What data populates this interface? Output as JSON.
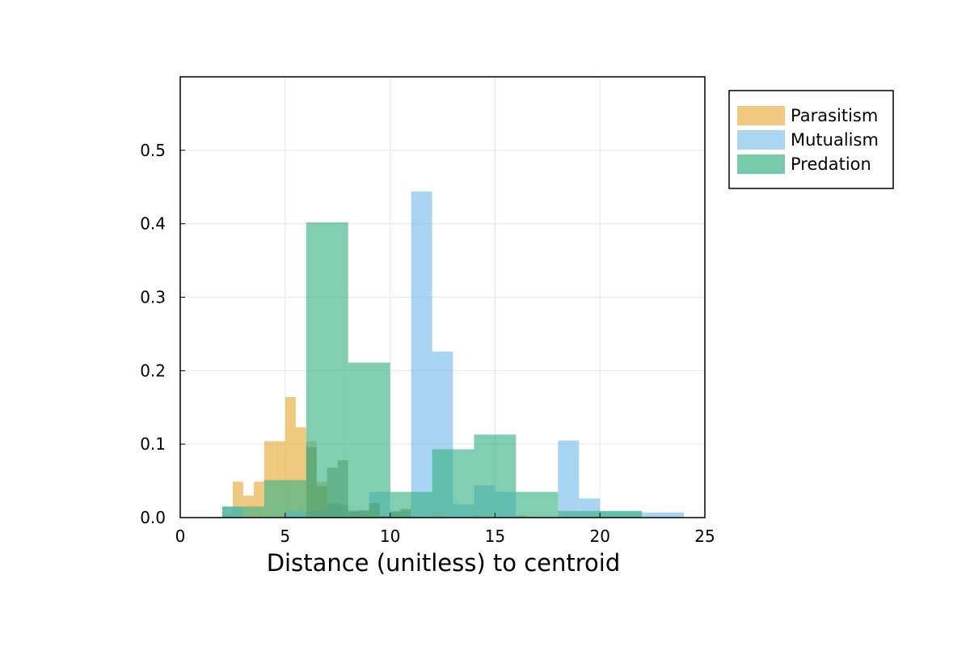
{
  "chart_data": {
    "type": "bar",
    "subtype": "overlaid-histogram",
    "xlabel": "Distance (unitless) to centroid",
    "ylabel": "",
    "xlim": [
      0,
      25
    ],
    "ylim": [
      0,
      0.6
    ],
    "x_ticks": [
      "0",
      "5",
      "10",
      "15",
      "20",
      "25"
    ],
    "y_ticks": [
      "0.0",
      "0.1",
      "0.2",
      "0.3",
      "0.4",
      "0.5"
    ],
    "grid": true,
    "legend_position": "outside-top-right",
    "series": [
      {
        "name": "Parasitism",
        "color": "#e9b44c",
        "opacity": 0.72,
        "bins": [
          {
            "x0": 1.5,
            "x1": 2.0,
            "y": 0.001
          },
          {
            "x0": 2.0,
            "x1": 2.5,
            "y": 0.005
          },
          {
            "x0": 2.5,
            "x1": 3.0,
            "y": 0.049
          },
          {
            "x0": 3.0,
            "x1": 3.5,
            "y": 0.03
          },
          {
            "x0": 3.5,
            "x1": 4.0,
            "y": 0.049
          },
          {
            "x0": 4.0,
            "x1": 4.5,
            "y": 0.104
          },
          {
            "x0": 4.5,
            "x1": 5.0,
            "y": 0.104
          },
          {
            "x0": 5.0,
            "x1": 5.5,
            "y": 0.164
          },
          {
            "x0": 5.5,
            "x1": 6.0,
            "y": 0.123
          },
          {
            "x0": 6.0,
            "x1": 6.5,
            "y": 0.104
          },
          {
            "x0": 6.5,
            "x1": 7.0,
            "y": 0.049
          },
          {
            "x0": 7.0,
            "x1": 7.5,
            "y": 0.02
          },
          {
            "x0": 7.5,
            "x1": 8.0,
            "y": 0.015
          },
          {
            "x0": 8.0,
            "x1": 8.5,
            "y": 0.01
          },
          {
            "x0": 8.5,
            "x1": 9.0,
            "y": 0.005
          },
          {
            "x0": 9.0,
            "x1": 9.5,
            "y": 0.003
          },
          {
            "x0": 9.5,
            "x1": 10.0,
            "y": 0.003
          },
          {
            "x0": 10.0,
            "x1": 10.5,
            "y": 0.005
          },
          {
            "x0": 10.5,
            "x1": 11.0,
            "y": 0.002
          },
          {
            "x0": 11.0,
            "x1": 11.5,
            "y": 0.002
          },
          {
            "x0": 12.0,
            "x1": 12.5,
            "y": 0.008
          },
          {
            "x0": 14.0,
            "x1": 14.5,
            "y": 0.004
          },
          {
            "x0": 16.0,
            "x1": 16.5,
            "y": 0.003
          }
        ]
      },
      {
        "name": "Mutualism",
        "color": "#87c5ec",
        "opacity": 0.72,
        "bins": [
          {
            "x0": 2.0,
            "x1": 3.0,
            "y": 0.015
          },
          {
            "x0": 5.0,
            "x1": 6.0,
            "y": 0.009
          },
          {
            "x0": 6.0,
            "x1": 7.0,
            "y": 0.009
          },
          {
            "x0": 7.0,
            "x1": 8.0,
            "y": 0.018
          },
          {
            "x0": 8.0,
            "x1": 9.0,
            "y": 0.009
          },
          {
            "x0": 9.0,
            "x1": 10.0,
            "y": 0.035
          },
          {
            "x0": 10.0,
            "x1": 11.0,
            "y": 0.009
          },
          {
            "x0": 11.0,
            "x1": 12.0,
            "y": 0.444
          },
          {
            "x0": 12.0,
            "x1": 13.0,
            "y": 0.226
          },
          {
            "x0": 13.0,
            "x1": 14.0,
            "y": 0.018
          },
          {
            "x0": 14.0,
            "x1": 15.0,
            "y": 0.044
          },
          {
            "x0": 15.0,
            "x1": 16.0,
            "y": 0.035
          },
          {
            "x0": 16.0,
            "x1": 17.0,
            "y": 0.001
          },
          {
            "x0": 18.0,
            "x1": 19.0,
            "y": 0.105
          },
          {
            "x0": 19.0,
            "x1": 20.0,
            "y": 0.026
          },
          {
            "x0": 20.0,
            "x1": 22.0,
            "y": 0.009
          },
          {
            "x0": 22.0,
            "x1": 24.0,
            "y": 0.007
          }
        ]
      },
      {
        "name": "Predation",
        "color": "#3eb489",
        "opacity": 0.65,
        "bins": [
          {
            "x0": 2.0,
            "x1": 4.0,
            "y": 0.015
          },
          {
            "x0": 4.0,
            "x1": 6.0,
            "y": 0.051
          },
          {
            "x0": 6.0,
            "x1": 8.0,
            "y": 0.402
          },
          {
            "x0": 8.0,
            "x1": 10.0,
            "y": 0.211
          },
          {
            "x0": 10.0,
            "x1": 12.0,
            "y": 0.035
          },
          {
            "x0": 12.0,
            "x1": 14.0,
            "y": 0.093
          },
          {
            "x0": 14.0,
            "x1": 16.0,
            "y": 0.113
          },
          {
            "x0": 16.0,
            "x1": 18.0,
            "y": 0.035
          },
          {
            "x0": 18.0,
            "x1": 20.0,
            "y": 0.009
          },
          {
            "x0": 20.0,
            "x1": 22.0,
            "y": 0.009
          }
        ]
      },
      {
        "name": "",
        "color": "#4f9c6a",
        "opacity": 0.55,
        "bins": [
          {
            "x0": 6.0,
            "x1": 6.5,
            "y": 0.096
          },
          {
            "x0": 6.5,
            "x1": 7.0,
            "y": 0.043
          },
          {
            "x0": 7.0,
            "x1": 7.5,
            "y": 0.068
          },
          {
            "x0": 7.5,
            "x1": 8.0,
            "y": 0.078
          },
          {
            "x0": 8.0,
            "x1": 8.5,
            "y": 0.008
          },
          {
            "x0": 8.5,
            "x1": 9.0,
            "y": 0.01
          },
          {
            "x0": 9.0,
            "x1": 9.5,
            "y": 0.02
          },
          {
            "x0": 9.5,
            "x1": 10.0,
            "y": 0.002
          },
          {
            "x0": 10.0,
            "x1": 10.5,
            "y": 0.008
          },
          {
            "x0": 10.5,
            "x1": 11.0,
            "y": 0.012
          }
        ]
      }
    ]
  },
  "legend": {
    "items": [
      {
        "label": "Parasitism",
        "color": "#e9b44c"
      },
      {
        "label": "Mutualism",
        "color": "#87c5ec"
      },
      {
        "label": "Predation",
        "color": "#3eb489"
      }
    ]
  }
}
